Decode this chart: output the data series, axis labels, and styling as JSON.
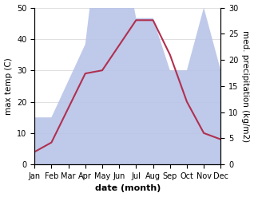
{
  "months": [
    "Jan",
    "Feb",
    "Mar",
    "Apr",
    "May",
    "Jun",
    "Jul",
    "Aug",
    "Sep",
    "Oct",
    "Nov",
    "Dec"
  ],
  "temp": [
    4,
    7,
    18,
    29,
    30,
    38,
    46,
    46,
    35,
    20,
    10,
    8
  ],
  "precip": [
    9,
    9,
    16,
    23,
    50,
    45,
    28,
    28,
    18,
    18,
    30,
    18
  ],
  "temp_color": "#b03050",
  "precip_fill_color": "#b8c4e8",
  "left_ylim": [
    0,
    50
  ],
  "right_ylim": [
    0,
    30
  ],
  "left_yticks": [
    0,
    10,
    20,
    30,
    40,
    50
  ],
  "right_yticks": [
    0,
    5,
    10,
    15,
    20,
    25,
    30
  ],
  "scale_factor": 1.6667,
  "xlabel": "date (month)",
  "ylabel_left": "max temp (C)",
  "ylabel_right": "med. precipitation (kg/m2)",
  "xlabel_fontsize": 8,
  "ylabel_fontsize": 7.5,
  "tick_fontsize": 7,
  "line_width": 1.5
}
